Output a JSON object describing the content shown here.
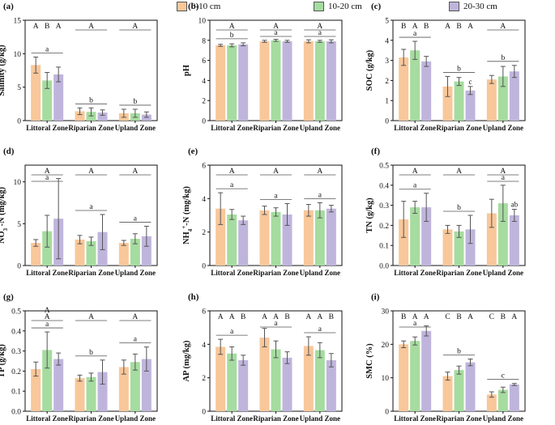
{
  "legend": [
    {
      "label": "0-10 cm",
      "color": "#f8c79a"
    },
    {
      "label": "10-20 cm",
      "color": "#a6dca0"
    },
    {
      "label": "20-30 cm",
      "color": "#bfb5dc"
    }
  ],
  "colors": {
    "edge": "#555555",
    "axis": "#111111"
  },
  "chart_data": [
    {
      "type": "bar",
      "panel": "(a)",
      "ylabel": "Salinity (g/kg)",
      "ylim": [
        0,
        15
      ],
      "yticks": [
        "0",
        "5",
        "10",
        "15"
      ],
      "categories": [
        "Littoral Zone",
        "Riparian Zone",
        "Upland Zone"
      ],
      "series": [
        {
          "name": "0-10 cm",
          "values": [
            8.3,
            1.4,
            1.1
          ],
          "errors": [
            1.2,
            0.5,
            0.6
          ]
        },
        {
          "name": "10-20 cm",
          "values": [
            6.0,
            1.3,
            1.1
          ],
          "errors": [
            1.2,
            0.6,
            0.6
          ]
        },
        {
          "name": "20-30 cm",
          "values": [
            6.9,
            1.2,
            0.9
          ],
          "errors": [
            1.1,
            0.4,
            0.4
          ]
        }
      ],
      "upper_letters": [
        [
          "A",
          "B",
          "A"
        ],
        [
          "A"
        ],
        [
          "A"
        ]
      ],
      "lower_letters": [
        "a",
        "b",
        "b"
      ]
    },
    {
      "type": "bar",
      "panel": "(b)",
      "ylabel": "pH",
      "ylim": [
        0,
        10
      ],
      "yticks": [
        "0",
        "2",
        "4",
        "6",
        "8",
        "10"
      ],
      "categories": [
        "Littoral Zone",
        "Riparian Zone",
        "Upland Zone"
      ],
      "series": [
        {
          "name": "0-10 cm",
          "values": [
            7.5,
            7.9,
            7.9
          ],
          "errors": [
            0.1,
            0.1,
            0.15
          ]
        },
        {
          "name": "10-20 cm",
          "values": [
            7.5,
            8.0,
            7.9
          ],
          "errors": [
            0.15,
            0.1,
            0.1
          ]
        },
        {
          "name": "20-30 cm",
          "values": [
            7.6,
            7.9,
            7.9
          ],
          "errors": [
            0.15,
            0.1,
            0.15
          ]
        }
      ],
      "upper_letters": [
        [
          "A"
        ],
        [
          "A"
        ],
        [
          "A"
        ]
      ],
      "lower_letters": [
        "b",
        "a",
        "a"
      ]
    },
    {
      "type": "bar",
      "panel": "(c)",
      "ylabel": "SOC (g/kg)",
      "ylim": [
        0,
        5
      ],
      "yticks": [
        "0",
        "1",
        "2",
        "3",
        "4",
        "5"
      ],
      "categories": [
        "Littoral Zone",
        "Riparian Zone",
        "Upland Zone"
      ],
      "series": [
        {
          "name": "0-10 cm",
          "values": [
            3.15,
            1.7,
            2.05
          ],
          "errors": [
            0.4,
            0.5,
            0.2
          ]
        },
        {
          "name": "10-20 cm",
          "values": [
            3.5,
            1.95,
            2.2
          ],
          "errors": [
            0.45,
            0.2,
            0.5
          ]
        },
        {
          "name": "20-30 cm",
          "values": [
            2.95,
            1.5,
            2.45
          ],
          "errors": [
            0.25,
            0.2,
            0.3
          ]
        }
      ],
      "upper_letters": [
        [
          "B",
          "A",
          "B"
        ],
        [
          "A",
          "B",
          "A"
        ],
        [
          "A"
        ]
      ],
      "lower_letters": [
        "a",
        "b",
        "b"
      ],
      "extra_letters": [
        {
          "group": 1,
          "bar": 2,
          "text": "c"
        }
      ]
    },
    {
      "type": "bar",
      "panel": "(d)",
      "ylabel": "NO3-N (mg/kg)",
      "ylim": [
        0,
        12
      ],
      "yticks": [
        "0",
        "5",
        "10"
      ],
      "categories": [
        "Littoral Zone",
        "Riparian Zone",
        "Upland Zone"
      ],
      "series": [
        {
          "name": "0-10 cm",
          "values": [
            2.7,
            3.1,
            2.7
          ],
          "errors": [
            0.4,
            0.5,
            0.3
          ]
        },
        {
          "name": "10-20 cm",
          "values": [
            4.1,
            2.9,
            3.2
          ],
          "errors": [
            1.9,
            0.5,
            0.6
          ]
        },
        {
          "name": "20-30 cm",
          "values": [
            5.6,
            4.0,
            3.5
          ],
          "errors": [
            4.8,
            2.1,
            1.2
          ]
        }
      ],
      "upper_letters": [
        [
          "A"
        ],
        [
          "A"
        ],
        [
          "A"
        ]
      ],
      "lower_letters": [
        "a",
        "a",
        "a"
      ]
    },
    {
      "type": "bar",
      "panel": "(e)",
      "ylabel": "NH4+-N (mg/kg)",
      "ylim": [
        0,
        6
      ],
      "yticks": [
        "0",
        "2",
        "4",
        "6"
      ],
      "categories": [
        "Littoral Zone",
        "Riparian Zone",
        "Upland Zone"
      ],
      "series": [
        {
          "name": "0-10 cm",
          "values": [
            3.4,
            3.3,
            3.3
          ],
          "errors": [
            0.95,
            0.25,
            0.35
          ]
        },
        {
          "name": "10-20 cm",
          "values": [
            3.05,
            3.2,
            3.3
          ],
          "errors": [
            0.3,
            0.25,
            0.45
          ]
        },
        {
          "name": "20-30 cm",
          "values": [
            2.7,
            3.05,
            3.4
          ],
          "errors": [
            0.25,
            0.65,
            0.2
          ]
        }
      ],
      "upper_letters": [
        [
          "A"
        ],
        [
          "A"
        ],
        [
          "A"
        ]
      ],
      "lower_letters": [
        "a",
        "a",
        "a"
      ]
    },
    {
      "type": "bar",
      "panel": "(f)",
      "ylabel": "TN (g/kg)",
      "ylim": [
        0,
        0.5
      ],
      "yticks": [
        "0.0",
        "0.1",
        "0.2",
        "0.3",
        "0.4",
        "0.5"
      ],
      "categories": [
        "Littoral Zone",
        "Riparian Zone",
        "Upland Zone"
      ],
      "series": [
        {
          "name": "0-10 cm",
          "values": [
            0.23,
            0.18,
            0.26
          ],
          "errors": [
            0.09,
            0.02,
            0.07
          ]
        },
        {
          "name": "10-20 cm",
          "values": [
            0.29,
            0.17,
            0.31
          ],
          "errors": [
            0.03,
            0.03,
            0.09
          ]
        },
        {
          "name": "20-30 cm",
          "values": [
            0.29,
            0.18,
            0.25
          ],
          "errors": [
            0.07,
            0.07,
            0.03
          ]
        }
      ],
      "upper_letters": [
        [
          "A"
        ],
        [
          "A"
        ],
        [
          "A"
        ]
      ],
      "lower_letters": [
        "a",
        "b",
        "a"
      ],
      "extra_letters": [
        {
          "group": 2,
          "bar": 2,
          "text": "ab"
        }
      ]
    },
    {
      "type": "bar",
      "panel": "(g)",
      "ylabel": "TP (g/kg)",
      "ylim": [
        0,
        0.5
      ],
      "yticks": [
        "0.0",
        "0.1",
        "0.2",
        "0.3",
        "0.4",
        "0.5"
      ],
      "categories": [
        "Littoral Zone",
        "Riparian Zone",
        "Upland Zone"
      ],
      "series": [
        {
          "name": "0-10 cm",
          "values": [
            0.21,
            0.165,
            0.22
          ],
          "errors": [
            0.035,
            0.015,
            0.035
          ]
        },
        {
          "name": "10-20 cm",
          "values": [
            0.305,
            0.17,
            0.245
          ],
          "errors": [
            0.09,
            0.02,
            0.04
          ]
        },
        {
          "name": "20-30 cm",
          "values": [
            0.26,
            0.195,
            0.26
          ],
          "errors": [
            0.03,
            0.06,
            0.06
          ]
        }
      ],
      "upper_letters": [
        [
          "A"
        ],
        [
          "A"
        ],
        [
          "A"
        ]
      ],
      "lower_letters": [
        "a",
        "b",
        "a"
      ],
      "extra_upper": [
        {
          "group": 0,
          "text": "A"
        }
      ]
    },
    {
      "type": "bar",
      "panel": "(h)",
      "ylabel": "AP (mg/kg)",
      "ylim": [
        0,
        6
      ],
      "yticks": [
        "0",
        "2",
        "4",
        "6"
      ],
      "categories": [
        "Littoral Zone",
        "Riparian Zone",
        "Upland Zone"
      ],
      "series": [
        {
          "name": "0-10 cm",
          "values": [
            3.85,
            4.4,
            3.9
          ],
          "errors": [
            0.45,
            0.55,
            0.55
          ]
        },
        {
          "name": "10-20 cm",
          "values": [
            3.45,
            3.7,
            3.65
          ],
          "errors": [
            0.4,
            0.5,
            0.45
          ]
        },
        {
          "name": "20-30 cm",
          "values": [
            3.05,
            3.2,
            3.05
          ],
          "errors": [
            0.3,
            0.35,
            0.4
          ]
        }
      ],
      "upper_letters": [
        [
          "A",
          "A",
          "B"
        ],
        [
          "A",
          "A",
          "B"
        ],
        [
          "A",
          "A",
          "B"
        ]
      ],
      "lower_letters": [
        "a",
        "a",
        "a"
      ]
    },
    {
      "type": "bar",
      "panel": "(i)",
      "ylabel": "SMC (%)",
      "ylim": [
        0,
        30
      ],
      "yticks": [
        "0",
        "10",
        "20",
        "30"
      ],
      "categories": [
        "Littoral Zone",
        "Riparian Zone",
        "Upland Zone"
      ],
      "series": [
        {
          "name": "0-10 cm",
          "values": [
            20,
            10.5,
            5
          ],
          "errors": [
            1,
            1.2,
            0.8
          ]
        },
        {
          "name": "10-20 cm",
          "values": [
            21,
            12.3,
            6.4
          ],
          "errors": [
            1.2,
            1.2,
            0.8
          ]
        },
        {
          "name": "20-30 cm",
          "values": [
            24,
            14.6,
            8
          ],
          "errors": [
            1.5,
            1,
            0.3
          ]
        }
      ],
      "upper_letters": [
        [
          "B",
          "A",
          "A"
        ],
        [
          "C",
          "B",
          "A"
        ],
        [
          "C",
          "B",
          "A"
        ]
      ],
      "lower_letters": [
        "a",
        "b",
        "c"
      ]
    }
  ]
}
